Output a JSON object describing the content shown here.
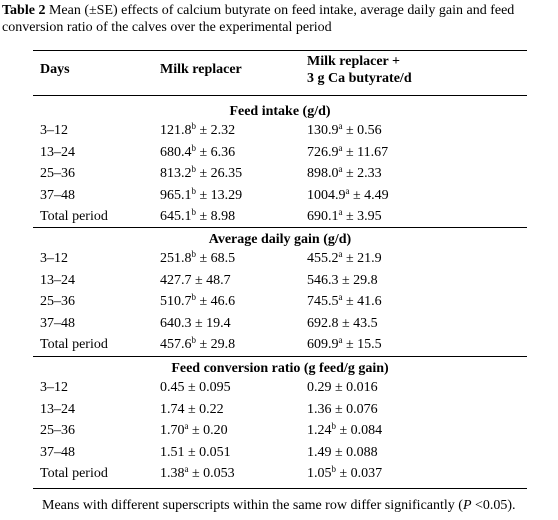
{
  "title": {
    "label": "Table 2",
    "text": "Mean (±SE) effects of calcium butyrate on feed intake, average daily gain and feed conversion ratio of the calves over the experimental period"
  },
  "table": {
    "columns": [
      "Days",
      "Milk replacer",
      "Milk replacer +",
      "3 g Ca butyrate/d"
    ],
    "sections": [
      {
        "title": "Feed intake (g/d)",
        "rows": [
          [
            "3–12",
            {
              "v": "121.8",
              "sup": "b",
              "se": "± 2.32"
            },
            {
              "v": "130.9",
              "sup": "a",
              "se": "± 0.56"
            }
          ],
          [
            "13–24",
            {
              "v": "680.4",
              "sup": "b",
              "se": "± 6.36"
            },
            {
              "v": "726.9",
              "sup": "a",
              "se": "± 11.67"
            }
          ],
          [
            "25–36",
            {
              "v": "813.2",
              "sup": "b",
              "se": "± 26.35"
            },
            {
              "v": "898.0",
              "sup": "a",
              "se": "± 2.33"
            }
          ],
          [
            "37–48",
            {
              "v": "965.1",
              "sup": "b",
              "se": "± 13.29"
            },
            {
              "v": "1004.9",
              "sup": "a",
              "se": "± 4.49"
            }
          ],
          [
            "Total period",
            {
              "v": "645.1",
              "sup": "b",
              "se": "± 8.98"
            },
            {
              "v": "690.1",
              "sup": "a",
              "se": "± 3.95"
            }
          ]
        ]
      },
      {
        "title": "Average daily gain (g/d)",
        "rows": [
          [
            "3–12",
            {
              "v": "251.8",
              "sup": "b",
              "se": "± 68.5"
            },
            {
              "v": "455.2",
              "sup": "a",
              "se": "± 21.9"
            }
          ],
          [
            "13–24",
            {
              "v": "427.7",
              "se": "± 48.7"
            },
            {
              "v": "546.3",
              "se": "± 29.8"
            }
          ],
          [
            "25–36",
            {
              "v": "510.7",
              "sup": "b",
              "se": "± 46.6"
            },
            {
              "v": "745.5",
              "sup": "a",
              "se": "± 41.6"
            }
          ],
          [
            "37–48",
            {
              "v": "640.3",
              "se": "± 19.4"
            },
            {
              "v": "692.8",
              "se": "± 43.5"
            }
          ],
          [
            "Total period",
            {
              "v": "457.6",
              "sup": "b",
              "se": "± 29.8"
            },
            {
              "v": "609.9",
              "sup": "a",
              "se": "± 15.5"
            }
          ]
        ]
      },
      {
        "title": "Feed conversion ratio (g feed/g gain)",
        "rows": [
          [
            "3–12",
            {
              "v": "0.45",
              "se": "± 0.095"
            },
            {
              "v": "0.29",
              "se": "± 0.016"
            }
          ],
          [
            "13–24",
            {
              "v": "1.74",
              "se": "± 0.22"
            },
            {
              "v": "1.36",
              "se": "± 0.076"
            }
          ],
          [
            "25–36",
            {
              "v": "1.70",
              "sup": "a",
              "se": "± 0.20"
            },
            {
              "v": "1.24",
              "sup": "b",
              "se": "± 0.084"
            }
          ],
          [
            "37–48",
            {
              "v": "1.51",
              "se": "± 0.051"
            },
            {
              "v": "1.49",
              "se": "± 0.088"
            }
          ],
          [
            "Total period",
            {
              "v": "1.38",
              "sup": "a",
              "se": "± 0.053"
            },
            {
              "v": "1.05",
              "sup": "b",
              "se": "± 0.037"
            }
          ]
        ]
      }
    ]
  },
  "footnote": {
    "pre": "Means with different superscripts within the same row differ significantly (",
    "p": "P",
    "post": " <0.05)."
  }
}
